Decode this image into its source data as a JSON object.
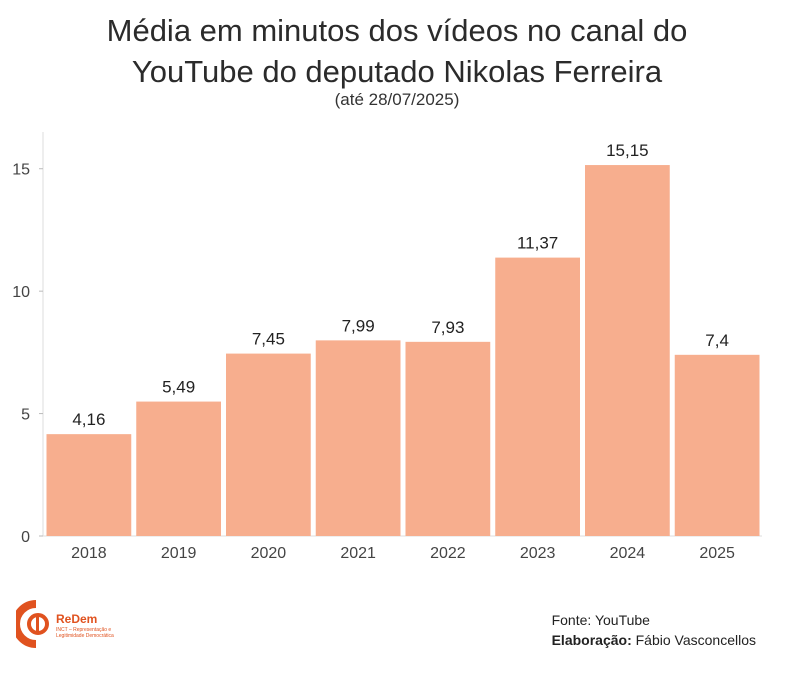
{
  "title_line1": "Média em minutos dos vídeos no canal do",
  "title_line2": "YouTube do deputado Nikolas Ferreira",
  "subtitle": "(até 28/07/2025)",
  "chart_data": {
    "type": "bar",
    "categories": [
      "2018",
      "2019",
      "2020",
      "2021",
      "2022",
      "2023",
      "2024",
      "2025"
    ],
    "values": [
      4.16,
      5.49,
      7.45,
      7.99,
      7.93,
      11.37,
      15.15,
      7.4
    ],
    "data_labels": [
      "4,16",
      "5,49",
      "7,45",
      "7,99",
      "7,93",
      "11,37",
      "15,15",
      "7,4"
    ],
    "ylim": [
      0,
      16.5
    ],
    "yticks": [
      0,
      5,
      10,
      15
    ],
    "bar_color": "#f7ae8e",
    "grid": false
  },
  "source_label": "Fonte:",
  "source_value": "YouTube",
  "credit_label": "Elaboração:",
  "credit_value": "Fábio Vasconcellos",
  "logo": {
    "name": "ReDem",
    "tagline": "INCT – Representação e Legitimidade Democrática",
    "color": "#e0521f"
  }
}
